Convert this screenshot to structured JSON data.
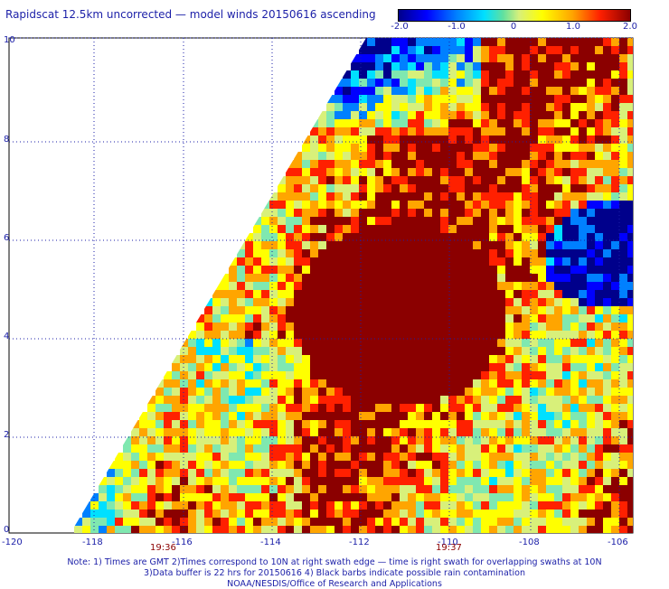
{
  "title": "Rapidscat 12.5km uncorrected — model winds 20150616 ascending",
  "colorbar": {
    "ticks": [
      "-2.0",
      "-1.0",
      "0",
      "1.0",
      "2.0"
    ]
  },
  "map": {
    "lat_ticks": [
      "10",
      "8",
      "6",
      "4",
      "2",
      "0"
    ],
    "lon_ticks": [
      "-120",
      "-118",
      "-116",
      "-114",
      "-112",
      "-110",
      "-108",
      "-106"
    ],
    "times": [
      "19:36",
      "19:37"
    ]
  },
  "notes": {
    "line1": "Note: 1) Times are GMT 2)Times correspond to 10N at right swath edge — time is right swath for overlapping swaths at 10N",
    "line2": "3)Data buffer is 22 hrs for 20150616 4) Black barbs indicate possible rain contamination",
    "line3": "NOAA/NESDIS/Office of Research and Applications"
  },
  "colors": {
    "scale": [
      "#00008b",
      "#0000ff",
      "#0080ff",
      "#00e0ff",
      "#7fe8b0",
      "#d8f07a",
      "#ffff00",
      "#ffa500",
      "#ff2000",
      "#8b0000"
    ],
    "grid": "#1b1fa8"
  }
}
